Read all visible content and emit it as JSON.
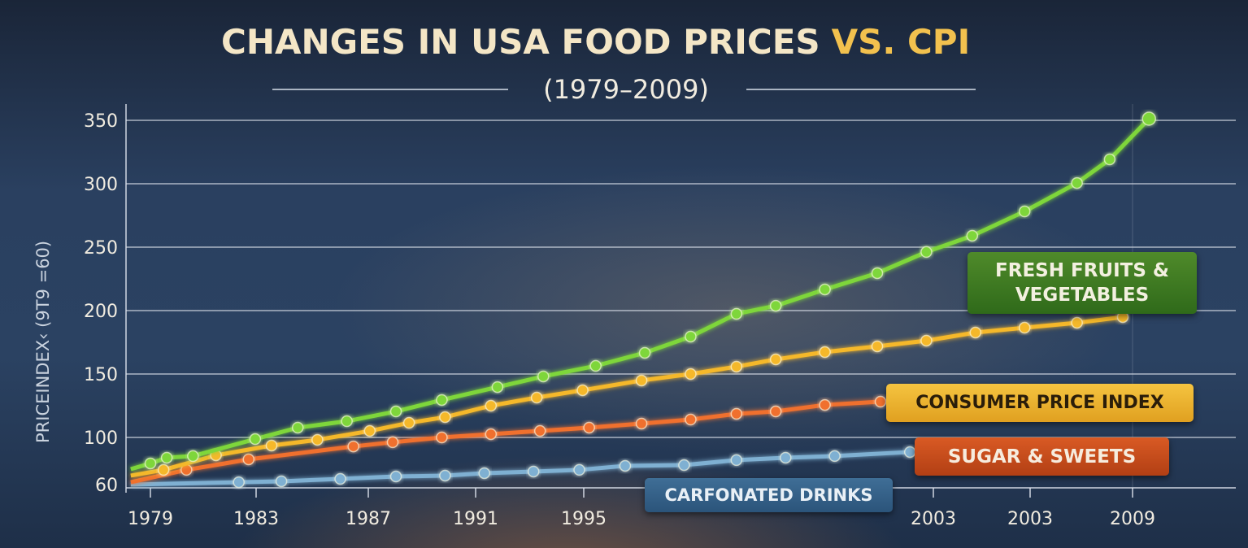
{
  "chart_data": {
    "type": "line",
    "title": "CHANGES IN USA FOOD PRICES",
    "title_highlight": "VS. CPI",
    "subtitle": "(1979–2009)",
    "ylabel": "PRICEINDEX‹ (9T9 =60)",
    "xlabel": "",
    "y_ticks": [
      60,
      100,
      150,
      200,
      250,
      300,
      350
    ],
    "x_tick_labels": [
      "1979",
      "1983",
      "1987",
      "1991",
      "1995",
      "2003",
      "2003",
      "2009"
    ],
    "xlim": [
      1978.4,
      2009.6
    ],
    "ylim": [
      60,
      350
    ],
    "grid": true,
    "legend": "inline-labels-right",
    "series": [
      {
        "name": "FRESH FRUITS & VEGETABLES",
        "color": "#7ed63a",
        "x": [
          1978.4,
          1979.0,
          1979.5,
          1980.3,
          1982.2,
          1983.5,
          1985.0,
          1986.5,
          1987.9,
          1989.6,
          1991.0,
          1992.6,
          1994.1,
          1995.5,
          1996.9,
          1998.1,
          1999.6,
          2001.2,
          2002.7,
          2004.1,
          2005.7,
          2007.3,
          2008.3,
          2009.5
        ],
        "y": [
          75,
          79.5,
          84,
          85.3,
          98.7,
          107.7,
          112.8,
          120.5,
          129.5,
          139.7,
          148.1,
          156.4,
          166.7,
          179.5,
          197.4,
          203.8,
          216.7,
          229.5,
          246.2,
          259,
          278.2,
          300.6,
          319.2,
          351.3
        ]
      },
      {
        "name": "CONSUMER PRICE INDEX",
        "color": "#f5b82a",
        "x": [
          1978.4,
          1979.4,
          1981.0,
          1982.7,
          1984.1,
          1985.7,
          1986.9,
          1988.0,
          1989.4,
          1990.8,
          1992.2,
          1994.0,
          1995.5,
          1996.9,
          1998.1,
          1999.6,
          2001.2,
          2002.7,
          2004.2,
          2005.7,
          2007.3,
          2008.7
        ],
        "y": [
          69.9,
          74.4,
          85.9,
          93.6,
          98.1,
          105.1,
          111.5,
          116,
          125,
          131.4,
          137.2,
          144.9,
          150,
          155.8,
          161.5,
          167.3,
          171.8,
          176.3,
          182.7,
          186.5,
          190.4,
          194.9
        ]
      },
      {
        "name": "SUGAR & SWEETS",
        "color": "#f0702e",
        "x": [
          1978.4,
          1980.1,
          1982.0,
          1985.2,
          1986.4,
          1987.9,
          1989.4,
          1990.9,
          1992.4,
          1994.0,
          1995.5,
          1996.9,
          1998.1,
          1999.6,
          2001.3
        ],
        "y": [
          64.7,
          74.4,
          82.7,
          92.9,
          96.2,
          100,
          102.6,
          105.1,
          107.7,
          110.9,
          114.1,
          118.6,
          120.5,
          125.6,
          128.2
        ]
      },
      {
        "name": "CARFONATED DRINKS",
        "color": "#7fb0d2",
        "x": [
          1978.4,
          1981.7,
          1983.0,
          1984.8,
          1986.5,
          1988.0,
          1989.2,
          1990.7,
          1992.1,
          1993.5,
          1995.3,
          1996.9,
          1998.4,
          1999.9,
          2002.2
        ],
        "y": [
          62.8,
          64.7,
          65.4,
          67.3,
          69.2,
          69.9,
          71.8,
          73.1,
          74.4,
          77.6,
          78.2,
          82.1,
          84,
          85.3,
          88.5
        ]
      }
    ]
  }
}
